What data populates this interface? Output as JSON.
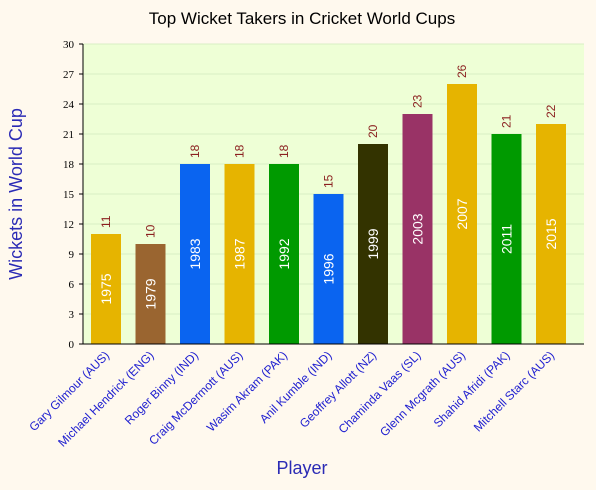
{
  "chart_data": {
    "type": "bar",
    "title": "Top Wicket Takers in Cricket World Cups",
    "xlabel": "Player",
    "ylabel": "Wickets in World Cup",
    "ylim": [
      0,
      30
    ],
    "yticks": [
      0,
      3,
      6,
      9,
      12,
      15,
      18,
      21,
      24,
      27,
      30
    ],
    "grid": true,
    "categories": [
      "Gary Gilmour (AUS)",
      "Michael Hendrick (ENG)",
      "Roger Binny (IND)",
      "Craig McDermott (AUS)",
      "Wasim Akram (PAK)",
      "Anil Kumble (IND)",
      "Geoffrey Allott (NZ)",
      "Chaminda Vaas (SL)",
      "Glenn Mcgrath (AUS)",
      "Shahid Afridi (PAK)",
      "Mitchell Starc (AUS)"
    ],
    "values": [
      11,
      10,
      18,
      18,
      18,
      15,
      20,
      23,
      26,
      21,
      22
    ],
    "bar_labels": [
      "1975",
      "1979",
      "1983",
      "1987",
      "1992",
      "1996",
      "1999",
      "2003",
      "2007",
      "2011",
      "2015"
    ],
    "colors": [
      "#e6b400",
      "#9a6530",
      "#0a64f0",
      "#e6b400",
      "#009a00",
      "#0a64f0",
      "#333300",
      "#993366",
      "#e6b400",
      "#009a00",
      "#e6b400"
    ],
    "plot_background": "#eeffd6",
    "grid_color": "#d8efc4"
  }
}
